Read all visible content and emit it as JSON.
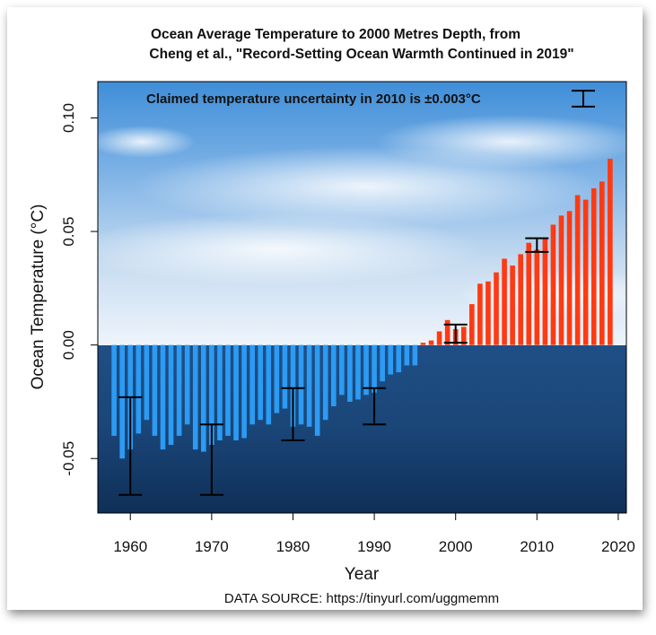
{
  "chart_data": {
    "type": "bar",
    "title_line1": "Ocean Average Temperature to 2000 Metres Depth, from",
    "title_line2": "Cheng et al., \"Record-Setting Ocean Warmth Continued in 2019\"",
    "xlabel": "Year",
    "ylabel": "Ocean Temperature (°C)",
    "source": "DATA SOURCE: https://tinyurl.com/uggmemm",
    "annotation": "Claimed temperature uncertainty in 2010 is ±0.003°C",
    "xlim": [
      1956,
      2021
    ],
    "ylim": [
      -0.074,
      0.116
    ],
    "x_ticks": [
      1960,
      1970,
      1980,
      1990,
      2000,
      2010,
      2020
    ],
    "y_ticks": [
      -0.05,
      0.0,
      0.05,
      0.1
    ],
    "y_tick_labels": [
      "-0.05",
      "0.00",
      "0.05",
      "0.10"
    ],
    "colors": {
      "negative": "#2b9bf4",
      "positive": "#ff3a12",
      "error_bar": "#000000"
    },
    "x": [
      1958,
      1959,
      1960,
      1961,
      1962,
      1963,
      1964,
      1965,
      1966,
      1967,
      1968,
      1969,
      1970,
      1971,
      1972,
      1973,
      1974,
      1975,
      1976,
      1977,
      1978,
      1979,
      1980,
      1981,
      1982,
      1983,
      1984,
      1985,
      1986,
      1987,
      1988,
      1989,
      1990,
      1991,
      1992,
      1993,
      1994,
      1995,
      1996,
      1997,
      1998,
      1999,
      2000,
      2001,
      2002,
      2003,
      2004,
      2005,
      2006,
      2007,
      2008,
      2009,
      2010,
      2011,
      2012,
      2013,
      2014,
      2015,
      2016,
      2017,
      2018,
      2019
    ],
    "values": [
      -0.04,
      -0.05,
      -0.046,
      -0.039,
      -0.033,
      -0.04,
      -0.046,
      -0.044,
      -0.04,
      -0.035,
      -0.046,
      -0.047,
      -0.044,
      -0.042,
      -0.04,
      -0.042,
      -0.041,
      -0.035,
      -0.033,
      -0.035,
      -0.03,
      -0.028,
      -0.036,
      -0.035,
      -0.036,
      -0.04,
      -0.033,
      -0.027,
      -0.022,
      -0.025,
      -0.024,
      -0.022,
      -0.021,
      -0.016,
      -0.013,
      -0.012,
      -0.009,
      -0.009,
      0.001,
      0.002,
      0.006,
      0.011,
      0.007,
      0.008,
      0.018,
      0.027,
      0.028,
      0.032,
      0.038,
      0.035,
      0.04,
      0.045,
      0.042,
      0.047,
      0.053,
      0.057,
      0.059,
      0.066,
      0.064,
      0.069,
      0.072,
      0.082
    ],
    "error_bars": [
      {
        "x": 1960,
        "low": -0.066,
        "high": -0.023
      },
      {
        "x": 1970,
        "low": -0.066,
        "high": -0.035
      },
      {
        "x": 1980,
        "low": -0.042,
        "high": -0.019
      },
      {
        "x": 1990,
        "low": -0.035,
        "high": -0.019
      },
      {
        "x": 2000,
        "low": 0.001,
        "high": 0.009
      },
      {
        "x": 2010,
        "low": 0.041,
        "high": 0.047
      }
    ],
    "legend_error_bar": {
      "low": 0.105,
      "high": 0.112
    }
  }
}
